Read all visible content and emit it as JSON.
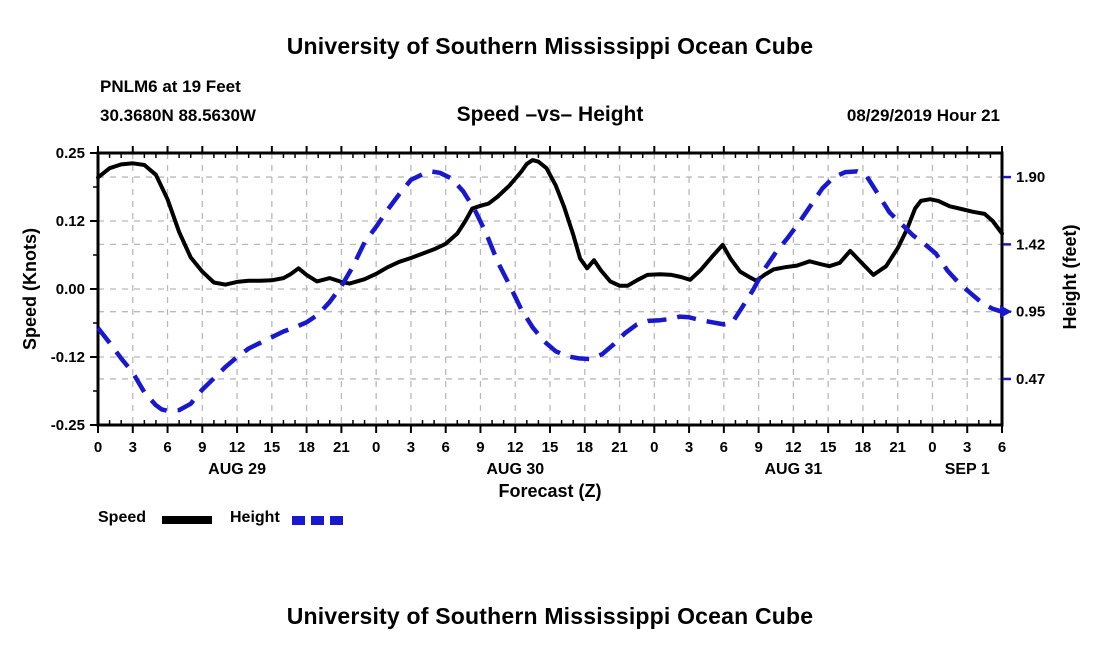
{
  "header": {
    "title": "University of Southern Mississippi Ocean Cube"
  },
  "footer": {
    "title": "University of Southern Mississippi Ocean Cube"
  },
  "station": {
    "line1": "PNLM6 at 19 Feet",
    "line2": "30.3680N 88.5630W"
  },
  "chart_header": {
    "title": "Speed –vs– Height",
    "datetime": "08/29/2019 Hour 21"
  },
  "legend": {
    "items": [
      {
        "label": "Speed",
        "color": "#000000",
        "style": "solid"
      },
      {
        "label": "Height",
        "color": "#1818cf",
        "style": "dashed"
      }
    ]
  },
  "chart_data": {
    "type": "line",
    "title": "Speed –vs– Height",
    "x_axis": {
      "label": "Forecast (Z)",
      "total_hours": 78,
      "major_tick_step_hours": 3,
      "minor_tick_step_hours": 1,
      "days": [
        {
          "label": "AUG 29",
          "start_hour": 0,
          "tick_hours": [
            0,
            3,
            6,
            9,
            12,
            15,
            18,
            21
          ],
          "label_hour": 12
        },
        {
          "label": "AUG 30",
          "start_hour": 24,
          "tick_hours": [
            0,
            3,
            6,
            9,
            12,
            15,
            18,
            21
          ],
          "label_hour": 36
        },
        {
          "label": "AUG 31",
          "start_hour": 48,
          "tick_hours": [
            0,
            3,
            6,
            9,
            12,
            15,
            18,
            21
          ],
          "label_hour": 60
        },
        {
          "label": "SEP 1",
          "start_hour": 72,
          "tick_hours": [
            0,
            3,
            6
          ],
          "label_hour": 75
        }
      ]
    },
    "y_left": {
      "label": "Speed (Knots)",
      "min": -0.25,
      "max": 0.25,
      "ticks": [
        {
          "value": 0.25,
          "label": "0.25"
        },
        {
          "value": 0.125,
          "label": "0.12"
        },
        {
          "value": 0.0,
          "label": "0.00"
        },
        {
          "value": -0.125,
          "label": "-0.12"
        },
        {
          "value": -0.25,
          "label": "-0.25"
        }
      ],
      "minor_ticks": [
        0.1875,
        0.0625,
        -0.0625,
        -0.1875
      ],
      "tick_color": "#000000"
    },
    "y_right": {
      "label": "Height (feet)",
      "min": 0.15,
      "max": 2.07,
      "ticks": [
        {
          "value": 1.9,
          "label": "1.90"
        },
        {
          "value": 1.425,
          "label": "1.42"
        },
        {
          "value": 0.95,
          "label": "0.95"
        },
        {
          "value": 0.475,
          "label": "0.47"
        }
      ],
      "tick_color": "#1818cf"
    },
    "grid": {
      "show": true,
      "color": "#b9b9b9",
      "dash": "6 6"
    },
    "series": [
      {
        "name": "Speed",
        "axis": "left",
        "color": "#000000",
        "line_style": "solid",
        "line_width": 4,
        "points": [
          [
            0,
            0.205
          ],
          [
            1,
            0.222
          ],
          [
            2,
            0.229
          ],
          [
            3,
            0.231
          ],
          [
            4,
            0.228
          ],
          [
            5,
            0.21
          ],
          [
            6,
            0.165
          ],
          [
            7,
            0.105
          ],
          [
            8,
            0.058
          ],
          [
            9,
            0.032
          ],
          [
            10,
            0.012
          ],
          [
            11,
            0.008
          ],
          [
            12,
            0.013
          ],
          [
            13,
            0.015
          ],
          [
            14,
            0.015
          ],
          [
            15,
            0.016
          ],
          [
            16,
            0.02
          ],
          [
            16.6,
            0.027
          ],
          [
            17.3,
            0.038
          ],
          [
            18,
            0.026
          ],
          [
            18.9,
            0.014
          ],
          [
            20,
            0.02
          ],
          [
            21,
            0.013
          ],
          [
            21.7,
            0.01
          ],
          [
            23,
            0.018
          ],
          [
            24,
            0.028
          ],
          [
            25,
            0.04
          ],
          [
            26,
            0.05
          ],
          [
            27,
            0.057
          ],
          [
            28,
            0.065
          ],
          [
            29,
            0.073
          ],
          [
            30,
            0.083
          ],
          [
            31,
            0.102
          ],
          [
            31.7,
            0.125
          ],
          [
            32.3,
            0.148
          ],
          [
            33,
            0.153
          ],
          [
            33.7,
            0.157
          ],
          [
            34.5,
            0.17
          ],
          [
            35.5,
            0.19
          ],
          [
            36.5,
            0.215
          ],
          [
            37,
            0.23
          ],
          [
            37.5,
            0.237
          ],
          [
            38,
            0.234
          ],
          [
            38.7,
            0.222
          ],
          [
            39.5,
            0.19
          ],
          [
            40.2,
            0.152
          ],
          [
            41,
            0.1
          ],
          [
            41.6,
            0.056
          ],
          [
            42.2,
            0.038
          ],
          [
            42.8,
            0.053
          ],
          [
            43.4,
            0.034
          ],
          [
            44.2,
            0.014
          ],
          [
            45,
            0.006
          ],
          [
            45.7,
            0.006
          ],
          [
            46.5,
            0.016
          ],
          [
            47.4,
            0.026
          ],
          [
            48.5,
            0.027
          ],
          [
            49.5,
            0.026
          ],
          [
            50.3,
            0.022
          ],
          [
            51.1,
            0.017
          ],
          [
            52,
            0.035
          ],
          [
            53,
            0.06
          ],
          [
            53.9,
            0.081
          ],
          [
            54.6,
            0.055
          ],
          [
            55.4,
            0.032
          ],
          [
            56.2,
            0.022
          ],
          [
            56.8,
            0.015
          ],
          [
            57.5,
            0.026
          ],
          [
            58.3,
            0.036
          ],
          [
            59.3,
            0.04
          ],
          [
            60.3,
            0.043
          ],
          [
            61.4,
            0.051
          ],
          [
            62.3,
            0.046
          ],
          [
            63.1,
            0.042
          ],
          [
            64,
            0.048
          ],
          [
            64.9,
            0.07
          ],
          [
            65.8,
            0.05
          ],
          [
            66.9,
            0.026
          ],
          [
            68,
            0.042
          ],
          [
            69,
            0.075
          ],
          [
            69.8,
            0.11
          ],
          [
            70.5,
            0.148
          ],
          [
            71,
            0.162
          ],
          [
            71.8,
            0.165
          ],
          [
            72.5,
            0.162
          ],
          [
            73.5,
            0.152
          ],
          [
            74.5,
            0.147
          ],
          [
            75.5,
            0.142
          ],
          [
            76.5,
            0.138
          ],
          [
            77.2,
            0.125
          ],
          [
            78,
            0.102
          ]
        ]
      },
      {
        "name": "Height",
        "axis": "right",
        "color": "#1818cf",
        "line_style": "dashed",
        "line_width": 4.5,
        "dash": "19 11",
        "arrow_end": true,
        "points": [
          [
            0,
            0.835
          ],
          [
            1,
            0.73
          ],
          [
            2,
            0.62
          ],
          [
            3,
            0.52
          ],
          [
            4,
            0.38
          ],
          [
            5,
            0.29
          ],
          [
            5.5,
            0.26
          ],
          [
            6,
            0.25
          ],
          [
            7,
            0.255
          ],
          [
            8,
            0.3
          ],
          [
            9,
            0.4
          ],
          [
            10,
            0.48
          ],
          [
            11,
            0.56
          ],
          [
            12,
            0.63
          ],
          [
            13,
            0.69
          ],
          [
            14,
            0.73
          ],
          [
            15,
            0.77
          ],
          [
            16,
            0.81
          ],
          [
            17,
            0.84
          ],
          [
            18,
            0.875
          ],
          [
            19,
            0.93
          ],
          [
            20,
            1.02
          ],
          [
            21,
            1.13
          ],
          [
            22,
            1.27
          ],
          [
            23,
            1.44
          ],
          [
            24,
            1.55
          ],
          [
            25,
            1.67
          ],
          [
            26,
            1.78
          ],
          [
            27,
            1.88
          ],
          [
            28,
            1.92
          ],
          [
            28.7,
            1.94
          ],
          [
            29.5,
            1.93
          ],
          [
            30.5,
            1.89
          ],
          [
            31.5,
            1.8
          ],
          [
            32.5,
            1.67
          ],
          [
            33.5,
            1.5
          ],
          [
            34.5,
            1.3
          ],
          [
            35.5,
            1.14
          ],
          [
            36.5,
            0.97
          ],
          [
            37.5,
            0.84
          ],
          [
            38.5,
            0.74
          ],
          [
            39.5,
            0.67
          ],
          [
            40.5,
            0.635
          ],
          [
            41.5,
            0.62
          ],
          [
            42.5,
            0.615
          ],
          [
            43.5,
            0.65
          ],
          [
            44.5,
            0.72
          ],
          [
            45.5,
            0.8
          ],
          [
            46.5,
            0.86
          ],
          [
            47.5,
            0.885
          ],
          [
            48.5,
            0.89
          ],
          [
            49.5,
            0.9
          ],
          [
            50.2,
            0.915
          ],
          [
            51,
            0.91
          ],
          [
            52,
            0.89
          ],
          [
            53,
            0.875
          ],
          [
            54,
            0.86
          ],
          [
            54.7,
            0.87
          ],
          [
            55.5,
            0.97
          ],
          [
            56.5,
            1.1
          ],
          [
            57.5,
            1.25
          ],
          [
            58.5,
            1.37
          ],
          [
            59.5,
            1.47
          ],
          [
            60.5,
            1.58
          ],
          [
            61.5,
            1.7
          ],
          [
            62.5,
            1.82
          ],
          [
            63.5,
            1.9
          ],
          [
            64.5,
            1.935
          ],
          [
            65.5,
            1.94
          ],
          [
            66.3,
            1.91
          ],
          [
            67.3,
            1.78
          ],
          [
            68.3,
            1.65
          ],
          [
            69.3,
            1.57
          ],
          [
            70.3,
            1.49
          ],
          [
            71.3,
            1.43
          ],
          [
            72.3,
            1.36
          ],
          [
            73.3,
            1.24
          ],
          [
            74.3,
            1.15
          ],
          [
            75.3,
            1.08
          ],
          [
            76.3,
            1.01
          ],
          [
            77.2,
            0.97
          ],
          [
            78,
            0.95
          ]
        ]
      }
    ]
  }
}
